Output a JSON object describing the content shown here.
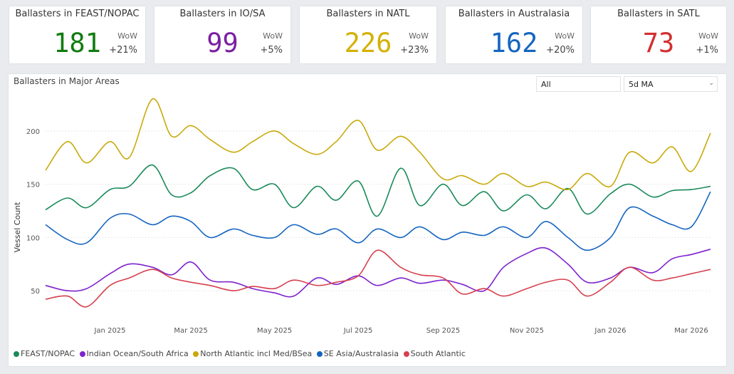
{
  "kpis": [
    {
      "title": "Ballasters in FEAST/NOPAC",
      "value": "181",
      "wow_label": "WoW",
      "wow_value": "+21%",
      "color": "#107c10"
    },
    {
      "title": "Ballasters in IO/SA",
      "value": "99",
      "wow_label": "WoW",
      "wow_value": "+5%",
      "color": "#7b1fa2"
    },
    {
      "title": "Ballasters in NATL",
      "value": "226",
      "wow_label": "WoW",
      "wow_value": "+23%",
      "color": "#d4b106"
    },
    {
      "title": "Ballasters in Australasia",
      "value": "162",
      "wow_label": "WoW",
      "wow_value": "+20%",
      "color": "#1565c0"
    },
    {
      "title": "Ballasters in SATL",
      "value": "73",
      "wow_label": "WoW",
      "wow_value": "+1%",
      "color": "#d32f2f"
    }
  ],
  "filters": {
    "region": "All",
    "smoothing": "5d MA"
  },
  "chart_data": {
    "type": "line",
    "title": "Ballasters in Major Areas",
    "xlabel": "",
    "ylabel": "Vessel Count",
    "ylim": [
      22,
      240
    ],
    "yticks": [
      50,
      100,
      150,
      200
    ],
    "xlim": [
      "2024-11-15",
      "2026-03-15"
    ],
    "xticks": [
      {
        "label": "Jan 2025",
        "date": "2025-01-01"
      },
      {
        "label": "Mar 2025",
        "date": "2025-03-01"
      },
      {
        "label": "May 2025",
        "date": "2025-05-01"
      },
      {
        "label": "Jul 2025",
        "date": "2025-07-01"
      },
      {
        "label": "Sep 2025",
        "date": "2025-09-01"
      },
      {
        "label": "Nov 2025",
        "date": "2025-11-01"
      },
      {
        "label": "Jan 2026",
        "date": "2026-01-01"
      },
      {
        "label": "Mar 2026",
        "date": "2026-03-01"
      }
    ],
    "grid": true,
    "legend_position": "bottom-left",
    "series": [
      {
        "name": "FEAST/NOPAC",
        "color": "#1a8a5a",
        "x": [
          "2024-11-15",
          "2024-12-01",
          "2024-12-15",
          "2025-01-01",
          "2025-01-15",
          "2025-02-01",
          "2025-02-15",
          "2025-03-01",
          "2025-03-15",
          "2025-04-01",
          "2025-04-15",
          "2025-05-01",
          "2025-05-15",
          "2025-06-01",
          "2025-06-15",
          "2025-07-01",
          "2025-07-15",
          "2025-08-01",
          "2025-08-15",
          "2025-09-01",
          "2025-09-15",
          "2025-10-01",
          "2025-10-15",
          "2025-11-01",
          "2025-11-15",
          "2025-12-01",
          "2025-12-15",
          "2026-01-01",
          "2026-01-15",
          "2026-02-01",
          "2026-02-15",
          "2026-03-01",
          "2026-03-15"
        ],
        "values": [
          126,
          137,
          128,
          145,
          148,
          168,
          140,
          142,
          158,
          165,
          145,
          150,
          128,
          148,
          135,
          153,
          120,
          165,
          130,
          150,
          130,
          143,
          125,
          140,
          127,
          146,
          122,
          141,
          150,
          138,
          144,
          145,
          148
        ]
      },
      {
        "name": "Indian Ocean/South Africa",
        "color": "#7e22ce",
        "x": [
          "2024-11-15",
          "2024-12-01",
          "2024-12-15",
          "2025-01-01",
          "2025-01-15",
          "2025-02-01",
          "2025-02-15",
          "2025-03-01",
          "2025-03-15",
          "2025-04-01",
          "2025-04-15",
          "2025-05-01",
          "2025-05-15",
          "2025-06-01",
          "2025-06-15",
          "2025-07-01",
          "2025-07-15",
          "2025-08-01",
          "2025-08-15",
          "2025-09-01",
          "2025-09-15",
          "2025-10-01",
          "2025-10-15",
          "2025-11-01",
          "2025-11-15",
          "2025-12-01",
          "2025-12-15",
          "2026-01-01",
          "2026-01-15",
          "2026-02-01",
          "2026-02-15",
          "2026-03-01",
          "2026-03-15"
        ],
        "values": [
          55,
          50,
          52,
          66,
          75,
          72,
          65,
          77,
          60,
          58,
          52,
          48,
          45,
          62,
          56,
          64,
          55,
          62,
          57,
          60,
          56,
          50,
          72,
          85,
          90,
          75,
          58,
          62,
          72,
          67,
          80,
          84,
          89
        ]
      },
      {
        "name": "North Atlantic incl Med/BSea",
        "color": "#c9a90a",
        "x": [
          "2024-11-15",
          "2024-12-01",
          "2024-12-15",
          "2025-01-01",
          "2025-01-15",
          "2025-02-01",
          "2025-02-15",
          "2025-03-01",
          "2025-03-15",
          "2025-04-01",
          "2025-04-15",
          "2025-05-01",
          "2025-05-15",
          "2025-06-01",
          "2025-06-15",
          "2025-07-01",
          "2025-07-15",
          "2025-08-01",
          "2025-08-15",
          "2025-09-01",
          "2025-09-15",
          "2025-10-01",
          "2025-10-15",
          "2025-11-01",
          "2025-11-15",
          "2025-12-01",
          "2025-12-15",
          "2026-01-01",
          "2026-01-15",
          "2026-02-01",
          "2026-02-15",
          "2026-03-01",
          "2026-03-15"
        ],
        "values": [
          163,
          190,
          170,
          190,
          175,
          230,
          195,
          205,
          192,
          180,
          190,
          200,
          188,
          178,
          190,
          210,
          182,
          195,
          180,
          155,
          158,
          150,
          160,
          148,
          152,
          145,
          160,
          148,
          180,
          170,
          185,
          162,
          198
        ]
      },
      {
        "name": "SE Asia/Australasia",
        "color": "#1565c0",
        "x": [
          "2024-11-15",
          "2024-12-01",
          "2024-12-15",
          "2025-01-01",
          "2025-01-15",
          "2025-02-01",
          "2025-02-15",
          "2025-03-01",
          "2025-03-15",
          "2025-04-01",
          "2025-04-15",
          "2025-05-01",
          "2025-05-15",
          "2025-06-01",
          "2025-06-15",
          "2025-07-01",
          "2025-07-15",
          "2025-08-01",
          "2025-08-15",
          "2025-09-01",
          "2025-09-15",
          "2025-10-01",
          "2025-10-15",
          "2025-11-01",
          "2025-11-15",
          "2025-12-01",
          "2025-12-15",
          "2026-01-01",
          "2026-01-15",
          "2026-02-01",
          "2026-02-15",
          "2026-03-01",
          "2026-03-15"
        ],
        "values": [
          112,
          98,
          95,
          118,
          122,
          112,
          120,
          115,
          100,
          108,
          102,
          100,
          112,
          103,
          108,
          95,
          108,
          100,
          110,
          98,
          105,
          102,
          110,
          100,
          115,
          100,
          88,
          100,
          128,
          120,
          112,
          110,
          143
        ]
      },
      {
        "name": "South Atlantic",
        "color": "#d6414f",
        "x": [
          "2024-11-15",
          "2024-12-01",
          "2024-12-15",
          "2025-01-01",
          "2025-01-15",
          "2025-02-01",
          "2025-02-15",
          "2025-03-01",
          "2025-03-15",
          "2025-04-01",
          "2025-04-15",
          "2025-05-01",
          "2025-05-15",
          "2025-06-01",
          "2025-06-15",
          "2025-07-01",
          "2025-07-15",
          "2025-08-01",
          "2025-08-15",
          "2025-09-01",
          "2025-09-15",
          "2025-10-01",
          "2025-10-15",
          "2025-11-01",
          "2025-11-15",
          "2025-12-01",
          "2025-12-15",
          "2026-01-01",
          "2026-01-15",
          "2026-02-01",
          "2026-02-15",
          "2026-03-01",
          "2026-03-15"
        ],
        "values": [
          42,
          45,
          35,
          55,
          62,
          70,
          62,
          58,
          55,
          50,
          54,
          52,
          60,
          55,
          58,
          64,
          88,
          72,
          65,
          62,
          47,
          52,
          45,
          52,
          58,
          60,
          45,
          58,
          72,
          60,
          62,
          66,
          70
        ]
      }
    ]
  }
}
